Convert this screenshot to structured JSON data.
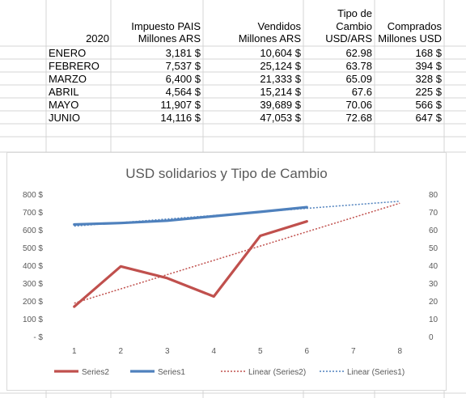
{
  "table": {
    "headers": {
      "year": "2020",
      "impuesto": [
        "Impuesto PAIS",
        "Millones ARS"
      ],
      "vendidos": [
        "Vendidos",
        "Millones ARS"
      ],
      "tipo": [
        "Tipo de",
        "Cambio",
        "USD/ARS"
      ],
      "comprados": [
        "Comprados",
        "Millones USD"
      ]
    },
    "rows": [
      {
        "month": "ENERO",
        "impuesto": "3,181 $",
        "vendidos": "10,604 $",
        "tipo": "62.98",
        "comprados": "168 $"
      },
      {
        "month": "FEBRERO",
        "impuesto": "7,537 $",
        "vendidos": "25,124 $",
        "tipo": "63.78",
        "comprados": "394 $"
      },
      {
        "month": "MARZO",
        "impuesto": "6,400 $",
        "vendidos": "21,333 $",
        "tipo": "65.09",
        "comprados": "328 $"
      },
      {
        "month": "ABRIL",
        "impuesto": "4,564 $",
        "vendidos": "15,214 $",
        "tipo": "67.6",
        "comprados": "225 $"
      },
      {
        "month": "MAYO",
        "impuesto": "11,907 $",
        "vendidos": "39,689 $",
        "tipo": "70.06",
        "comprados": "566 $"
      },
      {
        "month": "JUNIO",
        "impuesto": "14,116 $",
        "vendidos": "47,053 $",
        "tipo": "72.68",
        "comprados": "647 $"
      }
    ]
  },
  "chart_data": {
    "type": "line",
    "title": "USD solidarios y Tipo de Cambio",
    "x": [
      1,
      2,
      3,
      4,
      5,
      6
    ],
    "x_ticks": [
      "1",
      "2",
      "3",
      "4",
      "5",
      "6",
      "7",
      "8"
    ],
    "xlim": [
      1,
      8
    ],
    "left_axis": {
      "ticks": [
        "800 $",
        "700 $",
        "600 $",
        "500 $",
        "400 $",
        "300 $",
        "200 $",
        "100 $",
        "-  $"
      ],
      "ylim": [
        0,
        800
      ]
    },
    "right_axis": {
      "ticks": [
        "80",
        "70",
        "60",
        "50",
        "40",
        "30",
        "20",
        "10",
        "0"
      ],
      "ylim": [
        0,
        80
      ]
    },
    "series": [
      {
        "name": "Series2",
        "axis": "left",
        "color": "#c0504d",
        "values": [
          168,
          394,
          328,
          225,
          566,
          647
        ]
      },
      {
        "name": "Series1",
        "axis": "right",
        "color": "#4f81bd",
        "values": [
          62.98,
          63.78,
          65.09,
          67.6,
          70.06,
          72.68
        ]
      }
    ],
    "trendlines": [
      {
        "name": "Linear (Series2)",
        "of": "Series2",
        "forecast_to": 8,
        "color": "#c0504d"
      },
      {
        "name": "Linear (Series1)",
        "of": "Series1",
        "forecast_to": 8,
        "color": "#4f81bd"
      }
    ],
    "legend": "bottom"
  }
}
